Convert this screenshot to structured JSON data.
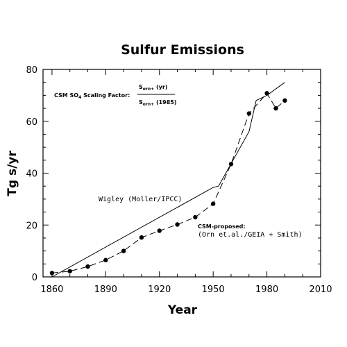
{
  "chart_data": {
    "type": "line",
    "title": "Sulfur Emissions",
    "xlabel": "Year",
    "ylabel": "Tg s/yr",
    "xlim": [
      1855,
      2010
    ],
    "ylim": [
      0,
      80
    ],
    "xticks": [
      1860,
      1890,
      1920,
      1950,
      1980,
      2010
    ],
    "yticks": [
      0,
      20,
      40,
      60,
      80
    ],
    "grid": false,
    "series": [
      {
        "name": "Wigley (Moller/IPCC)",
        "style": "solid",
        "x": [
          1860,
          1950,
          1953,
          1970,
          1974,
          1980,
          1990
        ],
        "y": [
          0,
          34.5,
          35,
          56,
          68,
          70,
          75
        ]
      },
      {
        "name": "CSM-proposed: (Orn et.al./GEIA + Smith)",
        "style": "dashed",
        "markers": true,
        "x": [
          1860,
          1870,
          1880,
          1890,
          1900,
          1910,
          1920,
          1930,
          1940,
          1950,
          1960,
          1970,
          1980,
          1985,
          1990
        ],
        "y": [
          1.5,
          2.2,
          4,
          6.5,
          10,
          15.2,
          17.8,
          20.2,
          23,
          28.2,
          43.5,
          63,
          70.8,
          65,
          68
        ]
      }
    ],
    "annotations": {
      "scaling_prefix": "CSM SO",
      "scaling_sub": "4",
      "scaling_suffix": " Scaling Factor:",
      "numerator": "S",
      "numerator_sub": "orn+",
      "numerator_tail": " (yr)",
      "denominator": "S",
      "denominator_sub": "orn+",
      "denominator_tail": " (1985)",
      "wigley_label": "Wigley (Moller/IPCC)",
      "csm_label_line1": "CSM-proposed:",
      "csm_label_line2": "(Orn et.al./GEIA + Smith)"
    }
  }
}
